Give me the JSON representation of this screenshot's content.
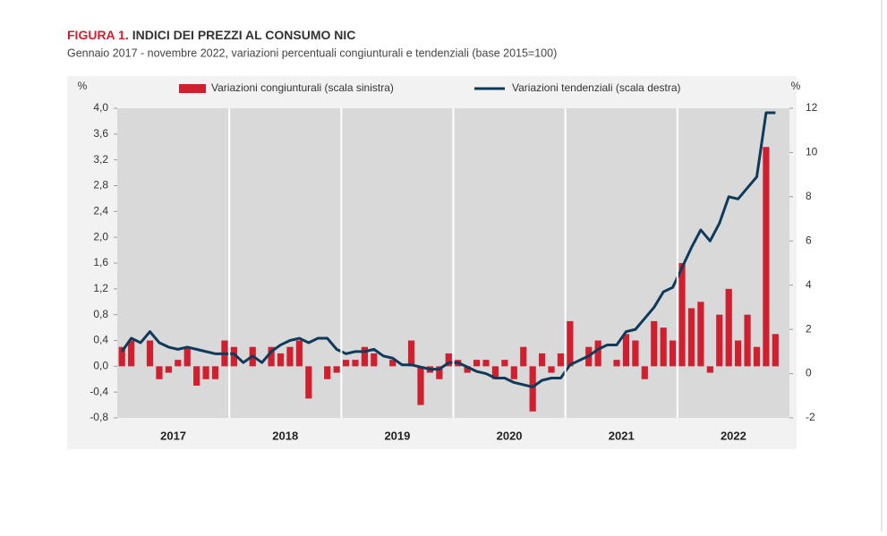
{
  "chart_data": {
    "type": "bar-line",
    "title_prefix": "FIGURA 1.",
    "title": "INDICI DEI PREZZI AL CONSUMO NIC",
    "subtitle": "Gennaio 2017 - novembre 2022, variazioni percentuali congiunturali e tendenziali (base 2015=100)",
    "y_unit": "%",
    "y2_unit": "%",
    "year_labels": [
      "2017",
      "2018",
      "2019",
      "2020",
      "2021",
      "2022"
    ],
    "categories": [
      null,
      null,
      null,
      null,
      null,
      null,
      null,
      null,
      null,
      null,
      null,
      null,
      null,
      null,
      null,
      null,
      null,
      null,
      null,
      null,
      null,
      null,
      null,
      null,
      null,
      null,
      null,
      null,
      null,
      null,
      null,
      null,
      null,
      null,
      null,
      null,
      null,
      null,
      null,
      null,
      null,
      null,
      null,
      null,
      null,
      null,
      null,
      null,
      null,
      null,
      null,
      null,
      null,
      null,
      null,
      null,
      null,
      null,
      null,
      null,
      null,
      null,
      null,
      null,
      null,
      null,
      null,
      null,
      null,
      null,
      null
    ],
    "series": [
      {
        "name": "Variazioni congiunturali (scala sinistra)",
        "color": "#d0202f",
        "type": "bar",
        "values": [
          0.3,
          0.4,
          0.0,
          0.4,
          -0.2,
          -0.1,
          0.1,
          0.3,
          -0.3,
          -0.2,
          -0.2,
          0.4,
          0.3,
          0.0,
          0.3,
          0.0,
          0.3,
          0.2,
          0.3,
          0.4,
          -0.5,
          0.0,
          -0.2,
          -0.1,
          0.1,
          0.1,
          0.3,
          0.2,
          0.0,
          0.1,
          0.0,
          0.4,
          -0.6,
          -0.1,
          -0.2,
          0.2,
          0.1,
          -0.1,
          0.1,
          0.1,
          -0.2,
          0.1,
          -0.2,
          0.3,
          -0.7,
          0.2,
          -0.1,
          0.2,
          0.7,
          0.0,
          0.3,
          0.4,
          0.0,
          0.1,
          0.5,
          0.4,
          -0.2,
          0.7,
          0.6,
          0.4,
          1.6,
          0.9,
          1.0,
          -0.1,
          0.8,
          1.2,
          0.4,
          0.8,
          0.3,
          3.4,
          0.5
        ]
      },
      {
        "name": "Variazioni tendenziali (scala destra)",
        "color": "#0f3a5a",
        "type": "line",
        "axis": "y2",
        "values": [
          1.0,
          1.6,
          1.4,
          1.9,
          1.4,
          1.2,
          1.1,
          1.2,
          1.1,
          1.0,
          0.9,
          0.9,
          0.9,
          0.5,
          0.8,
          0.5,
          1.0,
          1.3,
          1.5,
          1.6,
          1.4,
          1.6,
          1.6,
          1.1,
          0.9,
          1.0,
          1.0,
          1.1,
          0.8,
          0.7,
          0.4,
          0.4,
          0.3,
          0.2,
          0.2,
          0.5,
          0.5,
          0.3,
          0.1,
          0.0,
          -0.2,
          -0.2,
          -0.4,
          -0.5,
          -0.6,
          -0.3,
          -0.2,
          -0.2,
          0.4,
          0.6,
          0.8,
          1.1,
          1.3,
          1.3,
          1.9,
          2.0,
          2.5,
          3.0,
          3.7,
          3.9,
          4.8,
          5.7,
          6.5,
          6.0,
          6.8,
          8.0,
          7.9,
          8.4,
          8.9,
          11.8,
          11.8
        ]
      }
    ],
    "ylim": [
      -0.8,
      4.0
    ],
    "yticks": [
      {
        "value": -0.8,
        "label": "-0,8"
      },
      {
        "value": -0.4,
        "label": "-0,4"
      },
      {
        "value": 0,
        "label": "0,0"
      },
      {
        "value": 0.4,
        "label": "0,4"
      },
      {
        "value": 0.8,
        "label": "0,8"
      },
      {
        "value": 1.2,
        "label": "1,2"
      },
      {
        "value": 1.6,
        "label": "1,6"
      },
      {
        "value": 2.0,
        "label": "2,0"
      },
      {
        "value": 2.4,
        "label": "2,4"
      },
      {
        "value": 2.8,
        "label": "2,8"
      },
      {
        "value": 3.2,
        "label": "3,2"
      },
      {
        "value": 3.6,
        "label": "3,6"
      },
      {
        "value": 4.0,
        "label": "4,0"
      }
    ],
    "y2lim": [
      -2,
      12
    ],
    "y2ticks": [
      -2,
      0,
      2,
      4,
      6,
      8,
      10,
      12
    ]
  }
}
